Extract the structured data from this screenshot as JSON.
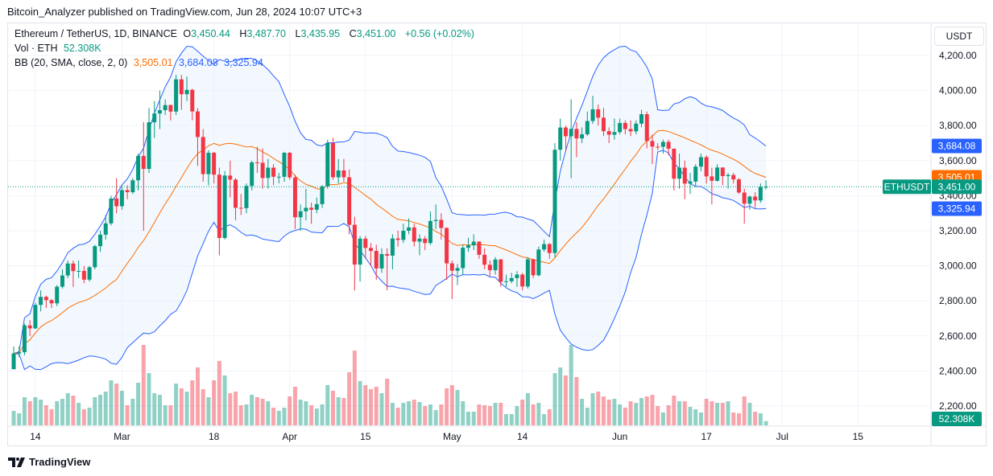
{
  "published": "Bitcoin_Analyzer published on TradingView.com, Jun 28, 2024 10:07 UTC+3",
  "legend": {
    "symbol": "Ethereum / TetherUS, 1D, BINANCE",
    "o_label": "O",
    "o": "3,450.44",
    "h_label": "H",
    "h": "3,487.70",
    "l_label": "L",
    "l": "3,435.95",
    "c_label": "C",
    "c": "3,451.00",
    "change": "+0.56 (+0.02%)",
    "vol_label": "Vol · ETH",
    "vol": "52.308K",
    "bb_label": "BB (20, SMA, close, 2, 0)",
    "bb_mid": "3,505.01",
    "bb_upper": "3,684.08",
    "bb_lower": "3,325.94"
  },
  "currency_button": "USDT",
  "footer_brand": "TradingView",
  "colors": {
    "up": "#089981",
    "down": "#f23645",
    "bb_band": "#2962ff",
    "bb_basis": "#ff6d00",
    "bb_fill": "#e3effd"
  },
  "chart_data": {
    "type": "candlestick",
    "symbol_tag": "ETHUSDT",
    "last_price": "3,451.00",
    "price_axis": [
      "4,200.00",
      "4,000.00",
      "3,800.00",
      "3,600.00",
      "3,400.00",
      "3,200.00",
      "3,000.00",
      "2,800.00",
      "2,600.00",
      "2,400.00",
      "2,200.00"
    ],
    "x_ticks": [
      {
        "label": "14",
        "date": "2024-02-14"
      },
      {
        "label": "Mar",
        "date": "2024-03-01"
      },
      {
        "label": "18",
        "date": "2024-03-18"
      },
      {
        "label": "Apr",
        "date": "2024-04-01"
      },
      {
        "label": "15",
        "date": "2024-04-15"
      },
      {
        "label": "May",
        "date": "2024-05-01"
      },
      {
        "label": "14",
        "date": "2024-05-14"
      },
      {
        "label": "Jun",
        "date": "2024-06-01"
      },
      {
        "label": "17",
        "date": "2024-06-17"
      },
      {
        "label": "Jul",
        "date": "2024-07-01"
      },
      {
        "label": "15",
        "date": "2024-07-15"
      }
    ],
    "close": [
      2500,
      2507,
      2660,
      2643,
      2777,
      2823,
      2804,
      2786,
      2881,
      2945,
      3013,
      2970,
      2971,
      2921,
      2992,
      3112,
      3178,
      3242,
      3384,
      3340,
      3432,
      3420,
      3488,
      3627,
      3553,
      3819,
      3869,
      3888,
      3917,
      3880,
      4064,
      3979,
      4004,
      3881,
      3735,
      3523,
      3645,
      3520,
      3159,
      3515,
      3492,
      3331,
      3329,
      3456,
      3590,
      3588,
      3501,
      3560,
      3508,
      3508,
      3645,
      3504,
      3277,
      3311,
      3331,
      3320,
      3352,
      3453,
      3700,
      3505,
      3544,
      3505,
      3234,
      3007,
      3155,
      3102,
      3085,
      2985,
      3067,
      3058,
      3156,
      3148,
      3200,
      3219,
      3138,
      3155,
      3130,
      3256,
      3262,
      3216,
      3014,
      2972,
      2987,
      3103,
      3117,
      3138,
      3063,
      3006,
      2975,
      3036,
      2909,
      2912,
      2930,
      2950,
      2882,
      3037,
      2946,
      3093,
      3124,
      3073,
      3662,
      3789,
      3739,
      3781,
      3727,
      3750,
      3826,
      3893,
      3845,
      3768,
      3748,
      3763,
      3815,
      3780,
      3767,
      3811,
      3865,
      3712,
      3680,
      3679,
      3707,
      3668,
      3497,
      3560,
      3469,
      3481,
      3566,
      3620,
      3510,
      3485,
      3561,
      3512,
      3518,
      3493,
      3418,
      3355,
      3395,
      3373,
      3450,
      3451
    ],
    "high": [
      2540,
      2540,
      2670,
      2690,
      2790,
      2860,
      2830,
      2810,
      2890,
      2980,
      3030,
      3030,
      3030,
      3000,
      3000,
      3120,
      3200,
      3290,
      3400,
      3500,
      3460,
      3460,
      3500,
      3640,
      3820,
      3900,
      3940,
      4000,
      3950,
      3920,
      4090,
      4090,
      4080,
      4010,
      3900,
      3780,
      3660,
      3650,
      3560,
      3540,
      3600,
      3500,
      3410,
      3470,
      3600,
      3680,
      3670,
      3610,
      3580,
      3530,
      3650,
      3650,
      3520,
      3350,
      3440,
      3360,
      3390,
      3460,
      3720,
      3730,
      3610,
      3610,
      3550,
      3280,
      3170,
      3170,
      3130,
      3120,
      3100,
      3100,
      3180,
      3200,
      3240,
      3270,
      3240,
      3180,
      3170,
      3310,
      3350,
      3300,
      3220,
      3030,
      3010,
      3120,
      3160,
      3180,
      3140,
      3100,
      3030,
      3050,
      3040,
      2950,
      2960,
      2970,
      2960,
      3050,
      3040,
      3110,
      3150,
      3130,
      3700,
      3840,
      3800,
      3950,
      3820,
      3790,
      3880,
      3970,
      3920,
      3900,
      3790,
      3840,
      3840,
      3830,
      3830,
      3830,
      3890,
      3880,
      3750,
      3700,
      3720,
      3720,
      3670,
      3640,
      3600,
      3530,
      3580,
      3640,
      3630,
      3560,
      3580,
      3560,
      3530,
      3530,
      3500,
      3440,
      3400,
      3420,
      3470,
      3487.7
    ],
    "low": [
      2410,
      2480,
      2490,
      2600,
      2640,
      2740,
      2760,
      2760,
      2770,
      2870,
      2930,
      2880,
      2930,
      2900,
      2910,
      2980,
      3080,
      3150,
      3230,
      3300,
      3320,
      3380,
      3410,
      3430,
      3200,
      3530,
      3730,
      3780,
      3860,
      3830,
      3860,
      3890,
      3940,
      3830,
      3570,
      3480,
      3460,
      3470,
      3060,
      3150,
      3390,
      3260,
      3290,
      3300,
      3430,
      3530,
      3440,
      3440,
      3460,
      3470,
      3480,
      3490,
      3210,
      3200,
      3260,
      3240,
      3300,
      3330,
      3440,
      3490,
      3470,
      3480,
      3180,
      2860,
      2910,
      3040,
      3000,
      2920,
      2960,
      2860,
      2980,
      3110,
      3130,
      3180,
      3110,
      3060,
      3090,
      3120,
      3210,
      3150,
      2920,
      2810,
      2890,
      2950,
      3080,
      3090,
      3040,
      2980,
      2940,
      2950,
      2880,
      2880,
      2900,
      2880,
      2860,
      2870,
      2930,
      2940,
      3080,
      3040,
      3050,
      3600,
      3650,
      3500,
      3620,
      3700,
      3740,
      3810,
      3800,
      3740,
      3700,
      3720,
      3750,
      3750,
      3740,
      3750,
      3790,
      3670,
      3580,
      3660,
      3640,
      3630,
      3430,
      3440,
      3380,
      3410,
      3450,
      3540,
      3470,
      3350,
      3480,
      3460,
      3440,
      3470,
      3410,
      3240,
      3320,
      3330,
      3360,
      3435.95
    ],
    "volume_k": [
      180,
      150,
      350,
      300,
      350,
      320,
      250,
      200,
      300,
      330,
      400,
      370,
      280,
      200,
      220,
      350,
      380,
      420,
      560,
      520,
      430,
      250,
      330,
      530,
      1000,
      650,
      400,
      380,
      250,
      250,
      520,
      460,
      420,
      560,
      720,
      450,
      350,
      560,
      800,
      620,
      400,
      420,
      250,
      260,
      380,
      350,
      330,
      300,
      220,
      180,
      220,
      360,
      480,
      320,
      300,
      250,
      210,
      260,
      500,
      430,
      350,
      340,
      660,
      930,
      550,
      500,
      450,
      480,
      400,
      580,
      280,
      220,
      280,
      300,
      320,
      290,
      240,
      260,
      190,
      260,
      460,
      500,
      440,
      300,
      170,
      170,
      260,
      250,
      240,
      280,
      280,
      140,
      140,
      240,
      320,
      400,
      260,
      280,
      140,
      200,
      650,
      720,
      620,
      1000,
      600,
      330,
      220,
      400,
      420,
      360,
      320,
      330,
      260,
      220,
      300,
      280,
      340,
      360,
      380,
      240,
      160,
      250,
      370,
      300,
      300,
      230,
      200,
      160,
      330,
      300,
      280,
      280,
      300,
      160,
      150,
      360,
      280,
      170,
      150,
      52.308
    ],
    "indicator": {
      "name": "BB",
      "length": 20,
      "mult": 2
    }
  }
}
